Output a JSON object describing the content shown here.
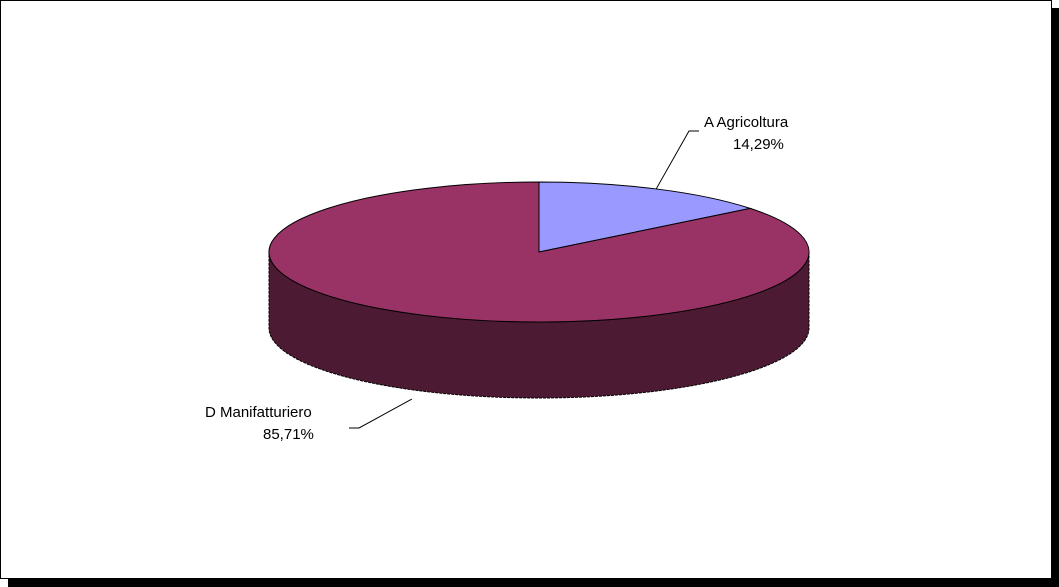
{
  "chart_data": {
    "type": "pie",
    "three_d": true,
    "title": "",
    "legend": "none",
    "slices": [
      {
        "category": "A  Agricoltura",
        "percent_label": "14,29%",
        "value": 14.29,
        "color": "#9999ff",
        "side_color": "#4d4d80"
      },
      {
        "category": "D  Manifatturiero",
        "percent_label": "85,71%",
        "value": 85.71,
        "color": "#993366",
        "side_color": "#4d1a33"
      }
    ]
  }
}
